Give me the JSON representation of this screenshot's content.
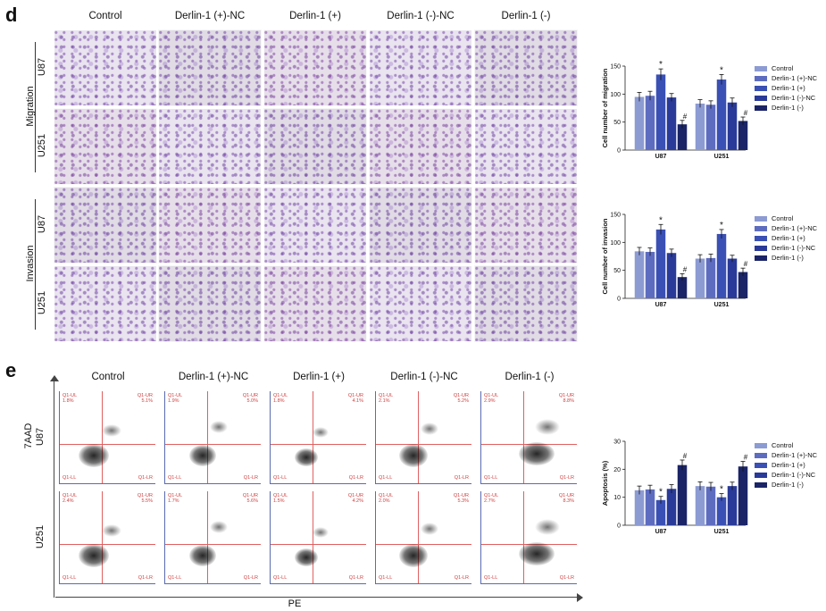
{
  "panel_d": {
    "letter": "d",
    "columns": [
      "Control",
      "Derlin-1 (+)-NC",
      "Derlin-1 (+)",
      "Derlin-1 (-)-NC",
      "Derlin-1 (-)"
    ],
    "groups": [
      "Migration",
      "Invasion"
    ],
    "rows": [
      "U87",
      "U251"
    ]
  },
  "panel_e": {
    "letter": "e",
    "columns": [
      "Control",
      "Derlin-1 (+)-NC",
      "Derlin-1 (+)",
      "Derlin-1 (-)-NC",
      "Derlin-1 (-)"
    ],
    "rows": [
      "U87",
      "U251"
    ],
    "y_axis_label": "7AAD",
    "x_axis_label": "PE",
    "quadrant_labels": [
      "Q1-UL",
      "Q1-UR",
      "Q1-LL",
      "Q1-LR"
    ],
    "upper_right_values": [
      [
        "5.1%",
        "5.0%",
        "4.1%",
        "5.2%",
        "8.8%"
      ],
      [
        "5.5%",
        "5.6%",
        "4.2%",
        "5.3%",
        "8.3%"
      ]
    ],
    "upper_left_values": [
      [
        "1.8%",
        "1.9%",
        "1.8%",
        "2.1%",
        "2.9%"
      ],
      [
        "2.4%",
        "1.7%",
        "1.5%",
        "2.0%",
        "2.7%"
      ]
    ]
  },
  "colors": [
    "#8d9bd3",
    "#5e6cc0",
    "#3a50b4",
    "#2a3a98",
    "#1a2466"
  ],
  "legend": [
    "Control",
    "Derlin-1 (+)-NC",
    "Derlin-1 (+)",
    "Derlin-1 (-)-NC",
    "Derlin-1 (-)"
  ],
  "chart_data": [
    {
      "type": "bar",
      "ylabel": "Cell number of migration",
      "categories": [
        "U87",
        "U251"
      ],
      "ylim": [
        0,
        150
      ],
      "yticks": [
        0,
        50,
        100,
        150
      ],
      "series": [
        {
          "name": "Control",
          "values": [
            95,
            83
          ],
          "errors": [
            8,
            7
          ]
        },
        {
          "name": "Derlin-1 (+)-NC",
          "values": [
            97,
            81
          ],
          "errors": [
            8,
            7
          ]
        },
        {
          "name": "Derlin-1 (+)",
          "values": [
            135,
            126
          ],
          "errors": [
            10,
            9
          ]
        },
        {
          "name": "Derlin-1 (-)-NC",
          "values": [
            94,
            85
          ],
          "errors": [
            7,
            8
          ]
        },
        {
          "name": "Derlin-1 (-)",
          "values": [
            46,
            52
          ],
          "errors": [
            7,
            7
          ]
        }
      ],
      "annotations": [
        [
          "",
          "",
          "*",
          "",
          "#"
        ],
        [
          "",
          "",
          "*",
          "",
          "#"
        ]
      ]
    },
    {
      "type": "bar",
      "ylabel": "Cell number of invasion",
      "categories": [
        "U87",
        "U251"
      ],
      "ylim": [
        0,
        150
      ],
      "yticks": [
        0,
        50,
        100,
        150
      ],
      "series": [
        {
          "name": "Control",
          "values": [
            84,
            71
          ],
          "errors": [
            7,
            7
          ]
        },
        {
          "name": "Derlin-1 (+)-NC",
          "values": [
            83,
            72
          ],
          "errors": [
            7,
            7
          ]
        },
        {
          "name": "Derlin-1 (+)",
          "values": [
            123,
            115
          ],
          "errors": [
            9,
            8
          ]
        },
        {
          "name": "Derlin-1 (-)-NC",
          "values": [
            81,
            71
          ],
          "errors": [
            7,
            6
          ]
        },
        {
          "name": "Derlin-1 (-)",
          "values": [
            38,
            47
          ],
          "errors": [
            6,
            7
          ]
        }
      ],
      "annotations": [
        [
          "",
          "",
          "*",
          "",
          "#"
        ],
        [
          "",
          "",
          "*",
          "",
          "#"
        ]
      ]
    },
    {
      "type": "bar",
      "ylabel": "Apoptosis (%)",
      "categories": [
        "U87",
        "U251"
      ],
      "ylim": [
        0,
        30
      ],
      "yticks": [
        0,
        10,
        20,
        30
      ],
      "series": [
        {
          "name": "Control",
          "values": [
            12.5,
            14.0
          ],
          "errors": [
            1.5,
            1.5
          ]
        },
        {
          "name": "Derlin-1 (+)-NC",
          "values": [
            12.8,
            13.8
          ],
          "errors": [
            1.5,
            1.5
          ]
        },
        {
          "name": "Derlin-1 (+)",
          "values": [
            9.0,
            10.0
          ],
          "errors": [
            1.3,
            1.3
          ]
        },
        {
          "name": "Derlin-1 (-)-NC",
          "values": [
            13.0,
            14.0
          ],
          "errors": [
            1.5,
            1.4
          ]
        },
        {
          "name": "Derlin-1 (-)",
          "values": [
            21.5,
            21.0
          ],
          "errors": [
            1.8,
            1.8
          ]
        }
      ],
      "annotations": [
        [
          "",
          "",
          "*",
          "",
          "#"
        ],
        [
          "",
          "",
          "*",
          "",
          "#"
        ]
      ]
    }
  ]
}
